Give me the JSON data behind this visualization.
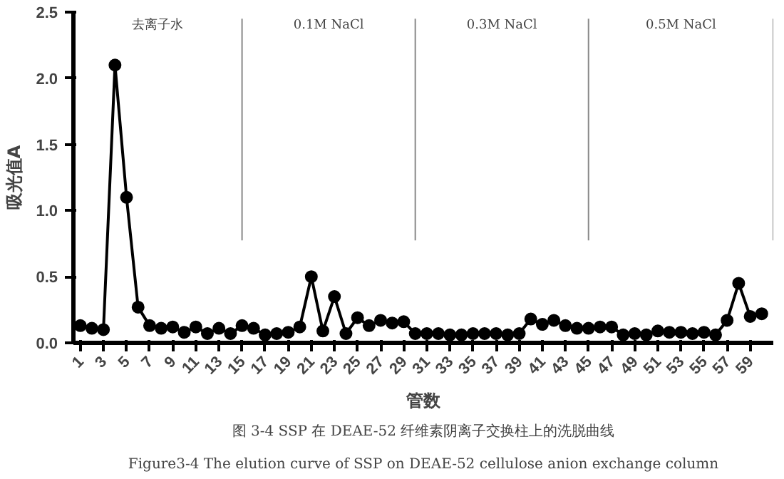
{
  "chart_data": {
    "type": "line",
    "xlabel": "管数",
    "ylabel": "吸光值A",
    "x": [
      1,
      2,
      3,
      4,
      5,
      6,
      7,
      8,
      9,
      10,
      11,
      12,
      13,
      14,
      15,
      16,
      17,
      18,
      19,
      20,
      21,
      22,
      23,
      24,
      25,
      26,
      27,
      28,
      29,
      30,
      31,
      32,
      33,
      34,
      35,
      36,
      37,
      38,
      39,
      40,
      41,
      42,
      43,
      44,
      45,
      46,
      47,
      48,
      49,
      50,
      51,
      52,
      53,
      54,
      55,
      56,
      57,
      58,
      59,
      60
    ],
    "series": [
      {
        "color": "#000000",
        "values": [
          0.13,
          0.11,
          0.1,
          2.1,
          1.1,
          0.27,
          0.13,
          0.11,
          0.12,
          0.08,
          0.12,
          0.07,
          0.11,
          0.07,
          0.13,
          0.11,
          0.06,
          0.07,
          0.08,
          0.12,
          0.5,
          0.09,
          0.35,
          0.07,
          0.19,
          0.13,
          0.17,
          0.15,
          0.16,
          0.07,
          0.07,
          0.07,
          0.06,
          0.06,
          0.07,
          0.07,
          0.07,
          0.06,
          0.07,
          0.18,
          0.14,
          0.17,
          0.13,
          0.11,
          0.11,
          0.12,
          0.12,
          0.06,
          0.07,
          0.06,
          0.09,
          0.08,
          0.08,
          0.07,
          0.08,
          0.06,
          0.17,
          0.45,
          0.2,
          0.22
        ]
      }
    ],
    "xlim": [
      0.4,
      61
    ],
    "xticks": [
      1,
      3,
      5,
      7,
      9,
      11,
      13,
      15,
      17,
      19,
      21,
      23,
      25,
      27,
      29,
      31,
      33,
      35,
      37,
      39,
      41,
      43,
      45,
      47,
      49,
      51,
      53,
      55,
      57,
      59
    ],
    "ylim": [
      0,
      2.5
    ],
    "yticks": [
      {
        "value": 0,
        "label": "0.0"
      },
      {
        "value": 0.5,
        "label": "0.5"
      },
      {
        "value": 1,
        "label": "1.0"
      },
      {
        "value": 1.5,
        "label": "1.5"
      },
      {
        "value": 2,
        "label": "2.0"
      },
      2.5
    ],
    "ref_lines": [
      {
        "axis": "x",
        "value": 15
      },
      {
        "axis": "x",
        "value": 30
      },
      {
        "axis": "x",
        "value": 45
      },
      {
        "axis": "x",
        "value": 61
      }
    ],
    "annotations": [
      "去离子水",
      "0.1M NaCl",
      "0.3M NaCl",
      "0.5M NaCl",
      "图 3-4 SSP 在 DEAE-52 纤维素阴离子交换柱上的洗脱曲线",
      "Figure3-4 The elution curve of SSP on DEAE-52 cellulose anion exchange column"
    ],
    "marker": "circle",
    "grid": false
  }
}
